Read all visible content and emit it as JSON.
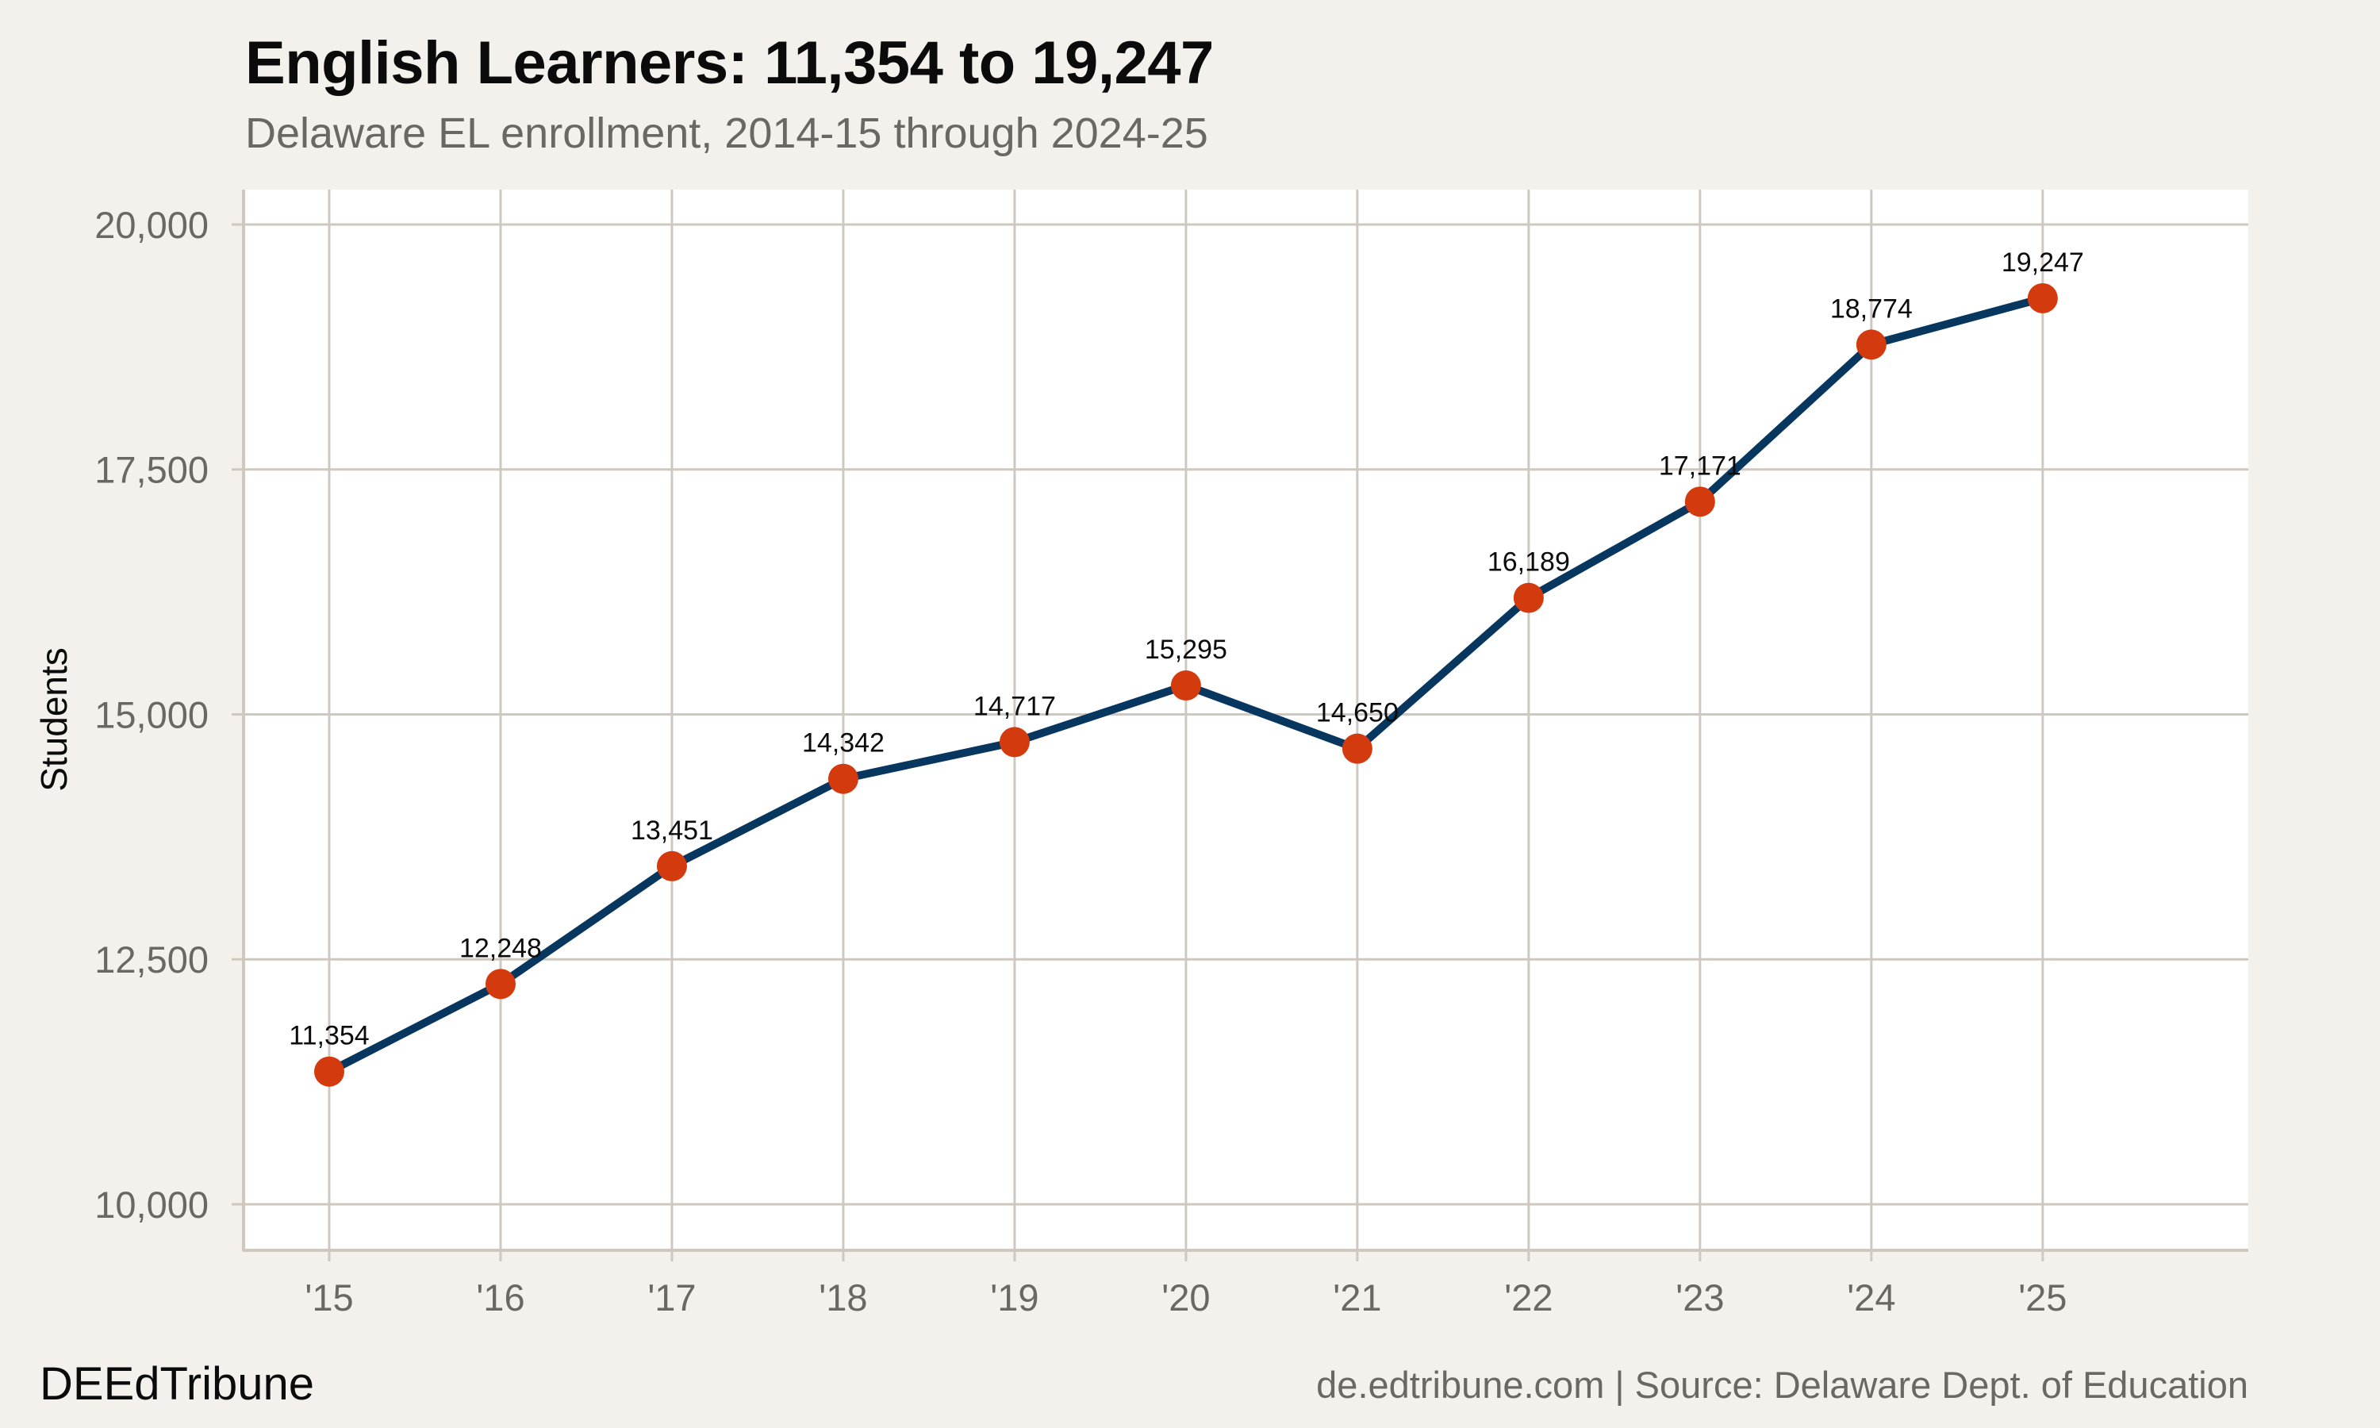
{
  "header": {
    "title": "English Learners: 11,354 to 19,247",
    "subtitle": "Delaware EL enrollment, 2014-15 through 2024-25"
  },
  "footer": {
    "brand": "DEEdTribune",
    "caption": "de.edtribune.com | Source: Delaware Dept. of Education"
  },
  "colors": {
    "background": "#f4f1ec",
    "panel": "#ffffff",
    "grid": "#cec8bf",
    "line": "#07365f",
    "point": "#d33b0f",
    "axis_text": "#6b6762",
    "label_text": "#0b0b0b"
  },
  "chart_data": {
    "type": "line",
    "title": "English Learners: 11,354 to 19,247",
    "subtitle": "Delaware EL enrollment, 2014-15 through 2024-25",
    "xlabel": "",
    "ylabel": "Students",
    "categories": [
      "'15",
      "'16",
      "'17",
      "'18",
      "'19",
      "'20",
      "'21",
      "'22",
      "'23",
      "'24",
      "'25"
    ],
    "x": [
      2015,
      2016,
      2017,
      2018,
      2019,
      2020,
      2021,
      2022,
      2023,
      2024,
      2025
    ],
    "values": [
      11354,
      12248,
      13451,
      14342,
      14717,
      15295,
      14650,
      16189,
      17171,
      18774,
      19247
    ],
    "data_labels": [
      "11,354",
      "12,248",
      "13,451",
      "14,342",
      "14,717",
      "15,295",
      "14,650",
      "16,189",
      "17,171",
      "18,774",
      "19,247"
    ],
    "ylim": [
      9530,
      20356
    ],
    "xlim": [
      2014.5,
      2026.2
    ],
    "yticks": [
      10000,
      12500,
      15000,
      17500,
      20000
    ],
    "ytick_labels": [
      "10,000",
      "12,500",
      "15,000",
      "17,500",
      "20,000"
    ],
    "grid": true,
    "legend": "none",
    "markers": true
  }
}
